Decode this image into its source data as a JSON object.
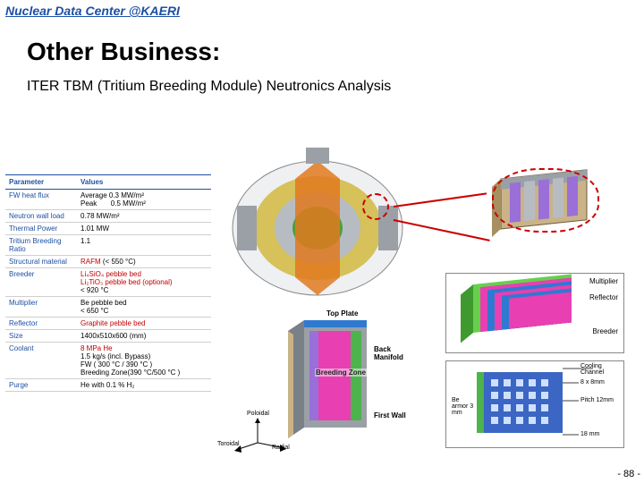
{
  "header": "Nuclear Data Center @KAERI",
  "title": "Other Business:",
  "subtitle": "ITER TBM (Tritium Breeding Module) Neutronics Analysis",
  "page_num": "- 88 -",
  "table": {
    "head": {
      "param": "Parameter",
      "val": "Values"
    },
    "rows": [
      {
        "param": "FW heat flux",
        "val_html": "Average 0.3 MW/m²<br>Peak&nbsp;&nbsp;&nbsp;&nbsp;&nbsp;&nbsp;&nbsp;0.5 MW/m²"
      },
      {
        "param": "Neutron wall load",
        "val_html": "0.78 MW/m²"
      },
      {
        "param": "Thermal Power",
        "val_html": "1.01 MW"
      },
      {
        "param": "Tritium Breeding Ratio",
        "val_html": "1.1"
      },
      {
        "param": "Structural material",
        "val_html": "<span class='red'>RAFM</span> (&lt; 550 °C)"
      },
      {
        "param": "Breeder",
        "val_html": "<span class='red'>Li₄SiO₄ pebble bed</span><br><span class='red'>Li₂TiO₃ pebble bed (optional)</span><br>&lt; 920 °C"
      },
      {
        "param": "Multiplier",
        "val_html": "Be pebble bed<br>&lt; 650 °C"
      },
      {
        "param": "Reflector",
        "val_html": "<span class='red'>Graphite pebble bed</span>"
      },
      {
        "param": "Size",
        "val_html": "1400x510x600 (mm)"
      },
      {
        "param": "Coolant",
        "val_html": "<span class='red'>8 MPa He</span><br>1.5 kg/s (incl. Bypass)<br>FW ( 300 °C / 390 °C )<br>Breeding Zone(390 °C/500 °C )"
      },
      {
        "param": "Purge",
        "val_html": "He with 0.1 % H₂"
      }
    ]
  },
  "mid_labels": {
    "top_plate": "Top Plate",
    "back_manifold": "Back Manifold",
    "first_wall": "First Wall",
    "breeding_zone": "Breeding Zone"
  },
  "axis": {
    "poloidal": "Poloidal",
    "toroidal": "Toroidal",
    "radial": "Radial"
  },
  "layer_labels": {
    "multiplier": "Multiplier",
    "reflector": "Reflector",
    "breeder": "Breeder"
  },
  "cross_labels": {
    "be": "Be armor 3 mm",
    "cooling": "Cooling Channel",
    "dim1": "8 x 8mm",
    "pitch": "Pitch 12mm",
    "dim2": "18 mm"
  },
  "colors": {
    "tbm_pink": "#e83fb3",
    "tbm_beige": "#c9b387",
    "tbm_green": "#66d04d",
    "tbm_blue": "#2e7ad1",
    "tbm_violet": "#9a6fd8",
    "tbm_gray": "#9aa0a6",
    "tokamak_yellow": "#d6c15a",
    "tokamak_orange": "#e0791e",
    "tokamak_green": "#4f9e3c",
    "tokamak_gray": "#b7bcc3",
    "cross_blue": "#3b66c4",
    "cross_green": "#4db34d"
  }
}
